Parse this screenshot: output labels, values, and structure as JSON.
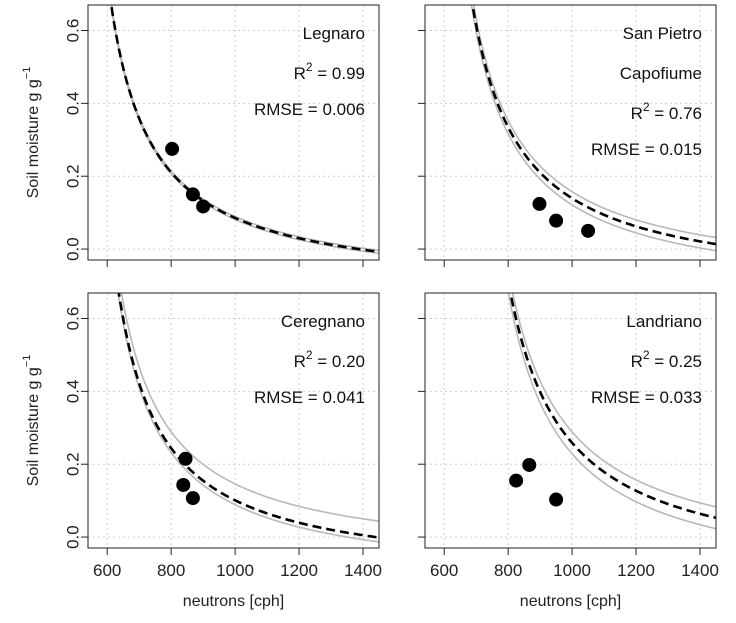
{
  "chart_data": [
    {
      "type": "line",
      "site_lines": [
        "Legnaro"
      ],
      "r2_value": "0.99",
      "rmse_text": "RMSE = 0.006",
      "ylabel": "Soil moisture g g",
      "ylabel_sup": "−1",
      "xlabel": "",
      "xlim": [
        540,
        1450
      ],
      "ylim": [
        -0.03,
        0.67
      ],
      "x_ticks": [
        600,
        800,
        1000,
        1200,
        1400
      ],
      "y_ticks": [
        0.0,
        0.2,
        0.4,
        0.6
      ],
      "y_tick_labels": [
        "0.0",
        "0.2",
        "0.4",
        "0.6"
      ],
      "x_tick_labels": [],
      "grid": true,
      "curve": {
        "n0": 1290,
        "a0": 0.0808,
        "a1": 0.372,
        "a2": 0.115
      },
      "envelope_offsets": [
        0.004,
        -0.004
      ],
      "points": [
        {
          "x": 803,
          "y": 0.275
        },
        {
          "x": 868,
          "y": 0.15
        },
        {
          "x": 900,
          "y": 0.117
        }
      ]
    },
    {
      "type": "line",
      "site_lines": [
        "San Pietro",
        "Capofiume"
      ],
      "r2_value": "0.76",
      "rmse_text": "RMSE = 0.015",
      "ylabel": "",
      "ylabel_sup": "",
      "xlabel": "",
      "xlim": [
        540,
        1450
      ],
      "ylim": [
        -0.03,
        0.67
      ],
      "x_ticks": [
        600,
        800,
        1000,
        1200,
        1400
      ],
      "y_ticks": [
        0.0,
        0.2,
        0.4,
        0.6
      ],
      "y_tick_labels": [],
      "x_tick_labels": [],
      "grid": true,
      "curve": {
        "n0": 1450,
        "a0": 0.0808,
        "a1": 0.372,
        "a2": 0.115
      },
      "envelope_offsets": [
        0.018,
        -0.018
      ],
      "points": [
        {
          "x": 898,
          "y": 0.124
        },
        {
          "x": 950,
          "y": 0.078
        },
        {
          "x": 1050,
          "y": 0.05
        }
      ]
    },
    {
      "type": "line",
      "site_lines": [
        "Ceregnano"
      ],
      "r2_value": "0.20",
      "rmse_text": "RMSE = 0.041",
      "ylabel": "Soil moisture g g",
      "ylabel_sup": "−1",
      "xlabel": "neutrons [cph]",
      "xlim": [
        540,
        1450
      ],
      "ylim": [
        -0.03,
        0.67
      ],
      "x_ticks": [
        600,
        800,
        1000,
        1200,
        1400
      ],
      "y_ticks": [
        0.0,
        0.2,
        0.4,
        0.6
      ],
      "y_tick_labels": [
        "0.0",
        "0.2",
        "0.4",
        "0.6"
      ],
      "x_tick_labels": [
        "600",
        "800",
        "1000",
        "1200",
        "1400"
      ],
      "grid": true,
      "curve": {
        "n0": 1340,
        "a0": 0.0808,
        "a1": 0.372,
        "a2": 0.115
      },
      "envelope_offsets": [
        0.045,
        -0.012
      ],
      "points": [
        {
          "x": 845,
          "y": 0.215
        },
        {
          "x": 838,
          "y": 0.143
        },
        {
          "x": 868,
          "y": 0.107
        }
      ]
    },
    {
      "type": "line",
      "site_lines": [
        "Landriano"
      ],
      "r2_value": "0.25",
      "rmse_text": "RMSE = 0.033",
      "ylabel": "",
      "ylabel_sup": "",
      "xlabel": "neutrons [cph]",
      "xlim": [
        540,
        1450
      ],
      "ylim": [
        -0.03,
        0.67
      ],
      "x_ticks": [
        600,
        800,
        1000,
        1200,
        1400
      ],
      "y_ticks": [
        0.0,
        0.2,
        0.4,
        0.6
      ],
      "y_tick_labels": [],
      "x_tick_labels": [
        "600",
        "800",
        "1000",
        "1200",
        "1400"
      ],
      "grid": true,
      "curve": {
        "n0": 1700,
        "a0": 0.0808,
        "a1": 0.372,
        "a2": 0.115
      },
      "envelope_offsets": [
        0.03,
        -0.03
      ],
      "points": [
        {
          "x": 825,
          "y": 0.155
        },
        {
          "x": 866,
          "y": 0.198
        },
        {
          "x": 950,
          "y": 0.103
        }
      ]
    }
  ]
}
